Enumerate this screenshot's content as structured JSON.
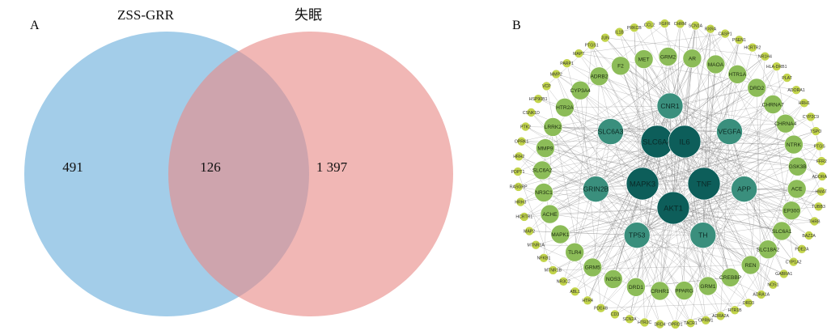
{
  "panelA": {
    "label": "A",
    "sets": [
      {
        "name": "ZSS-GRR",
        "unique": "491",
        "color": "#6aaedb"
      },
      {
        "name": "失眠",
        "unique": "1 397",
        "color": "#e88a87"
      }
    ],
    "intersection": "126"
  },
  "panelB": {
    "label": "B",
    "colors": {
      "tier1": "#0d5e5a",
      "tier2": "#3a8f7d",
      "tier3": "#8cbc58",
      "tier4": "#c2d44b",
      "edge": "#7a7a7a"
    },
    "tiers": [
      {
        "level": 1,
        "nodes": [
          "SLC6A4",
          "IL6",
          "MAPK3",
          "TNF",
          "AKT1"
        ]
      },
      {
        "level": 2,
        "nodes": [
          "CNR1",
          "VEGFA",
          "APP",
          "TH",
          "TP53",
          "GRIN2B",
          "SLC6A3"
        ]
      },
      {
        "level": 3,
        "nodes": [
          "AR",
          "MAOA",
          "HTR1A",
          "DRD2",
          "CHRNA7",
          "CHRNA4",
          "NTRK",
          "GSK3B",
          "ACE",
          "EP300",
          "SLC6A1",
          "SLC18A2",
          "REN",
          "CREBBP",
          "GRM1",
          "PPARG",
          "CRHR1",
          "DRD1",
          "NOS3",
          "GRM5",
          "TLR4",
          "MAPK1",
          "ACHE",
          "NR3C1",
          "SLC6A2",
          "MMP9",
          "LRRK2",
          "HTR2A",
          "CYP3A4",
          "ADRB2",
          "F2",
          "MET",
          "GRM2"
        ]
      },
      {
        "level": 4,
        "nodes": [
          "FGFR",
          "CHRM",
          "SCN1A",
          "RXRA",
          "CASP1",
          "PSEN1",
          "HCRTR2",
          "NR1H4",
          "HLA-DRB1",
          "PLAT",
          "ADORA1",
          "HRH1",
          "CYP2C9",
          "TSPO",
          "PTGS",
          "FFR2",
          "ADORA2A",
          "HMAT",
          "TUBB3",
          "THRB",
          "BAZ2A",
          "PDE2A",
          "CYP1A2",
          "GABRA1",
          "NOS1",
          "ADRA1A",
          "DRD3",
          "HTR1B",
          "ADRA2A",
          "OPRM1",
          "TACR1",
          "OPRD1",
          "DRD4",
          "HTR2C",
          "SCN2A",
          "CD3",
          "PDE4B",
          "HTR4",
          "ABL1",
          "NR3C2",
          "MTNR1B",
          "NFKB1",
          "MTNR1A",
          "MAP2",
          "HCRTR1",
          "HRH3",
          "RASGRP",
          "PDPT1",
          "HRH2",
          "OPRK1",
          "PTK2",
          "CSNK1D",
          "HSP90B1",
          "VCP",
          "MMP2",
          "PARP1",
          "MAPT",
          "PTGS1",
          "JUN",
          "IL1B",
          "PRKCB",
          "CCL2"
        ]
      }
    ]
  }
}
